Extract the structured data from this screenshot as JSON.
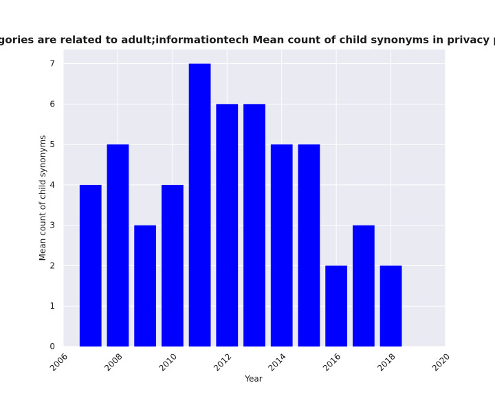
{
  "chart_data": {
    "type": "bar",
    "title": "Categories are related to adult;informationtech Mean count of child synonyms in privacy policies",
    "xlabel": "Year",
    "ylabel": "Mean count of child synonyms",
    "x": [
      2007,
      2008,
      2009,
      2010,
      2011,
      2012,
      2013,
      2014,
      2015,
      2016,
      2017,
      2018
    ],
    "values": [
      4,
      5,
      3,
      4,
      7,
      6,
      6,
      5,
      5,
      2,
      3,
      2
    ],
    "xlim": [
      2006,
      2020
    ],
    "ylim": [
      0,
      7.35
    ],
    "xticks": [
      "2006",
      "2008",
      "2010",
      "2012",
      "2014",
      "2016",
      "2018",
      "2020"
    ],
    "yticks": [
      "0",
      "1",
      "2",
      "3",
      "4",
      "5",
      "6",
      "7"
    ],
    "bar_color": "#0000ff",
    "background_color": "#eaeaf2",
    "grid": true
  }
}
